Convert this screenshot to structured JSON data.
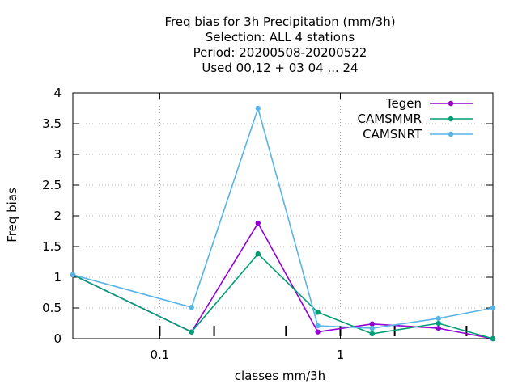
{
  "chart_data": {
    "type": "line",
    "title_lines": [
      "Freq bias  for 3h Precipitation (mm/3h)",
      "Selection: ALL      4 stations",
      "Period: 20200508-20200522",
      "Used  00,12  + 03 04 ... 24"
    ],
    "xlabel": "classes mm/3h",
    "ylabel": "Freq bias",
    "x_scale": "log",
    "xlim": [
      0.033,
      7.0
    ],
    "ylim": [
      0,
      4
    ],
    "x_ticks": [
      0.1,
      1
    ],
    "x_tick_labels": [
      "0.1",
      "1"
    ],
    "y_ticks": [
      0,
      0.5,
      1,
      1.5,
      2,
      2.5,
      3,
      3.5,
      4
    ],
    "y_tick_labels": [
      "0",
      "0.5",
      "1",
      "1.5",
      "2",
      "2.5",
      "3",
      "3.5",
      "4"
    ],
    "class_boundaries": [
      0.1,
      0.2,
      0.5,
      1,
      2,
      5,
      10
    ],
    "grid": true,
    "legend_position": "top-right",
    "x": [
      0.033,
      0.15,
      0.35,
      0.75,
      1.5,
      3.5,
      7.0
    ],
    "series": [
      {
        "name": "Tegen",
        "color": "#9400d3",
        "values": [
          1.04,
          0.11,
          1.88,
          0.11,
          0.24,
          0.17,
          0.0
        ]
      },
      {
        "name": "CAMSMMR",
        "color": "#009e73",
        "values": [
          1.04,
          0.11,
          1.38,
          0.43,
          0.08,
          0.25,
          0.0
        ]
      },
      {
        "name": "CAMSNRT",
        "color": "#56b4e9",
        "values": [
          1.04,
          0.51,
          3.75,
          0.21,
          0.17,
          0.33,
          0.5
        ]
      }
    ]
  }
}
